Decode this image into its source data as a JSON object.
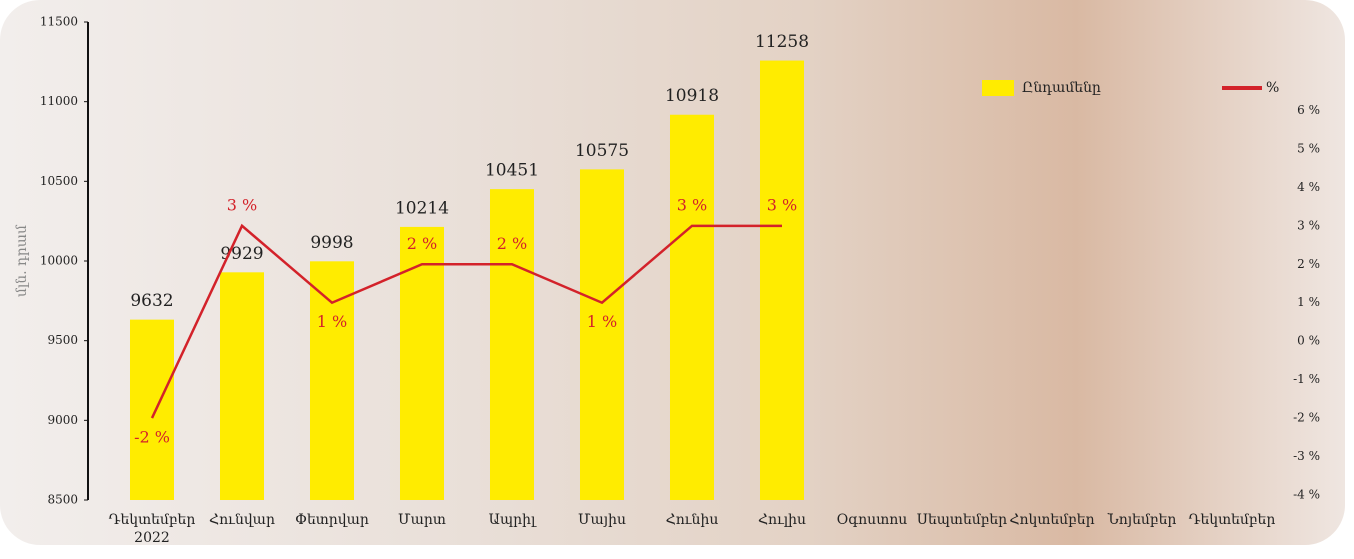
{
  "chart_data": {
    "type": "bar_line",
    "y_label": "մլն. դրամ",
    "categories": [
      "Դեկտեմբեր\n2022",
      "Հունվար",
      "Փետրվար",
      "Մարտ",
      "Ապրիլ",
      "Մայիս",
      "Հունիս",
      "Հուլիս",
      "Օգոստոս",
      "Սեպտեմբեր",
      "Հոկտեմբեր",
      "Նոյեմբեր",
      "Դեկտեմբեր"
    ],
    "series": [
      {
        "name": "Ընդամենը",
        "color": "#ffec00",
        "values": [
          9632,
          9929,
          9998,
          10214,
          10451,
          10575,
          10918,
          11258,
          null,
          null,
          null,
          null,
          null
        ]
      },
      {
        "name": "%",
        "color": "#d3222a",
        "axis": "y2",
        "values": [
          -2,
          3,
          1,
          2,
          2,
          1,
          3,
          3,
          null,
          null,
          null,
          null,
          null
        ],
        "value_labels": [
          "-2 %",
          "3 %",
          "1 %",
          "2 %",
          "2 %",
          "1 %",
          "3 %",
          "3 %",
          null,
          null,
          null,
          null,
          null
        ]
      }
    ],
    "ylim": [
      8500,
      11500
    ],
    "yticks": [
      8500,
      9000,
      9500,
      10000,
      10500,
      11000,
      11500
    ],
    "y2lim": [
      -4.13,
      8.3
    ],
    "y2ticks": [
      {
        "value": -4,
        "label": "-4 %"
      },
      {
        "value": -3,
        "label": "-3 %"
      },
      {
        "value": -2,
        "label": "-2 %"
      },
      {
        "value": -1,
        "label": "-1 %"
      },
      {
        "value": 0,
        "label": "0 %"
      },
      {
        "value": 1,
        "label": "1 %"
      },
      {
        "value": 2,
        "label": "2 %"
      },
      {
        "value": 3,
        "label": "3 %"
      },
      {
        "value": 4,
        "label": "4 %"
      },
      {
        "value": 5,
        "label": "5 %"
      },
      {
        "value": 6,
        "label": "6 %"
      }
    ],
    "legend": "top-right"
  }
}
